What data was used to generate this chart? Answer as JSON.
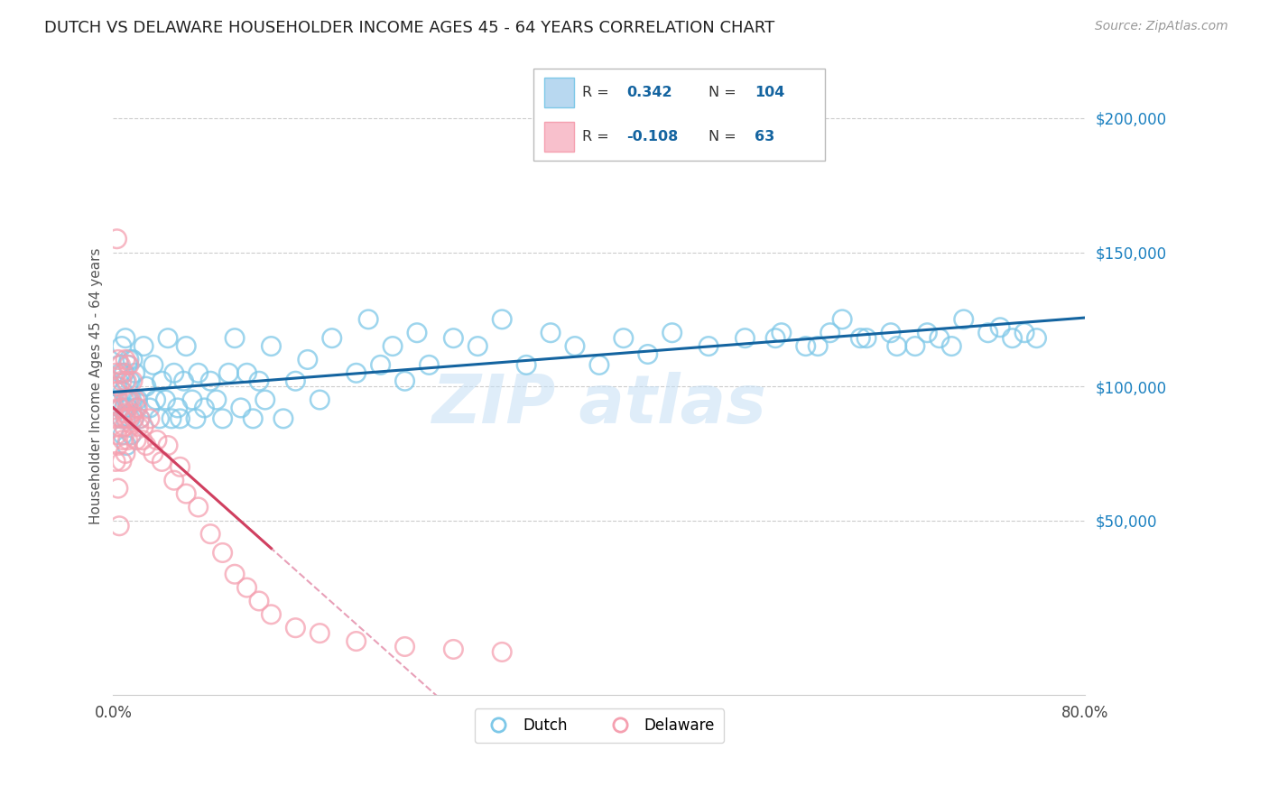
{
  "title": "DUTCH VS DELAWARE HOUSEHOLDER INCOME AGES 45 - 64 YEARS CORRELATION CHART",
  "source": "Source: ZipAtlas.com",
  "ylabel": "Householder Income Ages 45 - 64 years",
  "xlim": [
    0.0,
    0.8
  ],
  "ylim": [
    -15000,
    215000
  ],
  "dutch_R": 0.342,
  "dutch_N": 104,
  "delaware_R": -0.108,
  "delaware_N": 63,
  "dutch_color": "#7ec8e8",
  "delaware_color": "#f5a0b0",
  "dutch_line_color": "#1464a0",
  "delaware_line_color": "#d04060",
  "delaware_line_color_dash": "#e8a0b8",
  "legend_label_dutch": "Dutch",
  "legend_label_delaware": "Delaware",
  "dutch_x": [
    0.003,
    0.004,
    0.005,
    0.006,
    0.006,
    0.007,
    0.007,
    0.008,
    0.008,
    0.009,
    0.009,
    0.01,
    0.01,
    0.01,
    0.011,
    0.011,
    0.012,
    0.012,
    0.013,
    0.013,
    0.014,
    0.014,
    0.015,
    0.015,
    0.016,
    0.017,
    0.018,
    0.019,
    0.02,
    0.022,
    0.025,
    0.027,
    0.03,
    0.033,
    0.035,
    0.038,
    0.04,
    0.043,
    0.045,
    0.048,
    0.05,
    0.053,
    0.055,
    0.058,
    0.06,
    0.065,
    0.068,
    0.07,
    0.075,
    0.08,
    0.085,
    0.09,
    0.095,
    0.1,
    0.105,
    0.11,
    0.115,
    0.12,
    0.125,
    0.13,
    0.14,
    0.15,
    0.16,
    0.17,
    0.18,
    0.2,
    0.21,
    0.22,
    0.23,
    0.24,
    0.25,
    0.26,
    0.28,
    0.3,
    0.32,
    0.34,
    0.36,
    0.38,
    0.4,
    0.42,
    0.44,
    0.46,
    0.49,
    0.52,
    0.55,
    0.58,
    0.6,
    0.62,
    0.64,
    0.66,
    0.68,
    0.7,
    0.72,
    0.74,
    0.75,
    0.76,
    0.73,
    0.69,
    0.67,
    0.645,
    0.615,
    0.59,
    0.57,
    0.545
  ],
  "dutch_y": [
    100000,
    95000,
    108000,
    92000,
    105000,
    88000,
    115000,
    98000,
    82000,
    105000,
    92000,
    88000,
    102000,
    118000,
    95000,
    78000,
    108000,
    92000,
    95000,
    110000,
    88000,
    102000,
    95000,
    82000,
    110000,
    88000,
    105000,
    92000,
    95000,
    88000,
    115000,
    100000,
    92000,
    108000,
    95000,
    88000,
    102000,
    95000,
    118000,
    88000,
    105000,
    92000,
    88000,
    102000,
    115000,
    95000,
    88000,
    105000,
    92000,
    102000,
    95000,
    88000,
    105000,
    118000,
    92000,
    105000,
    88000,
    102000,
    95000,
    115000,
    88000,
    102000,
    110000,
    95000,
    118000,
    105000,
    125000,
    108000,
    115000,
    102000,
    120000,
    108000,
    118000,
    115000,
    125000,
    108000,
    120000,
    115000,
    108000,
    118000,
    112000,
    120000,
    115000,
    118000,
    120000,
    115000,
    125000,
    118000,
    120000,
    115000,
    118000,
    125000,
    120000,
    118000,
    120000,
    118000,
    122000,
    115000,
    120000,
    115000,
    118000,
    120000,
    115000,
    118000
  ],
  "delaware_x": [
    0.001,
    0.002,
    0.002,
    0.003,
    0.003,
    0.004,
    0.004,
    0.005,
    0.005,
    0.006,
    0.006,
    0.007,
    0.007,
    0.007,
    0.008,
    0.008,
    0.009,
    0.009,
    0.01,
    0.01,
    0.01,
    0.011,
    0.011,
    0.012,
    0.012,
    0.013,
    0.013,
    0.014,
    0.015,
    0.016,
    0.017,
    0.018,
    0.019,
    0.02,
    0.021,
    0.022,
    0.024,
    0.025,
    0.027,
    0.03,
    0.033,
    0.036,
    0.04,
    0.045,
    0.05,
    0.055,
    0.06,
    0.07,
    0.08,
    0.09,
    0.1,
    0.11,
    0.12,
    0.13,
    0.15,
    0.17,
    0.2,
    0.24,
    0.28,
    0.32,
    0.003,
    0.004,
    0.005
  ],
  "delaware_y": [
    88000,
    105000,
    72000,
    98000,
    82000,
    110000,
    78000,
    100000,
    85000,
    108000,
    92000,
    102000,
    88000,
    72000,
    105000,
    80000,
    95000,
    85000,
    110000,
    90000,
    75000,
    102000,
    88000,
    95000,
    80000,
    108000,
    88000,
    95000,
    90000,
    102000,
    88000,
    95000,
    80000,
    92000,
    85000,
    88000,
    80000,
    85000,
    78000,
    88000,
    75000,
    80000,
    72000,
    78000,
    65000,
    70000,
    60000,
    55000,
    45000,
    38000,
    30000,
    25000,
    20000,
    15000,
    10000,
    8000,
    5000,
    3000,
    2000,
    1000,
    155000,
    62000,
    48000
  ]
}
